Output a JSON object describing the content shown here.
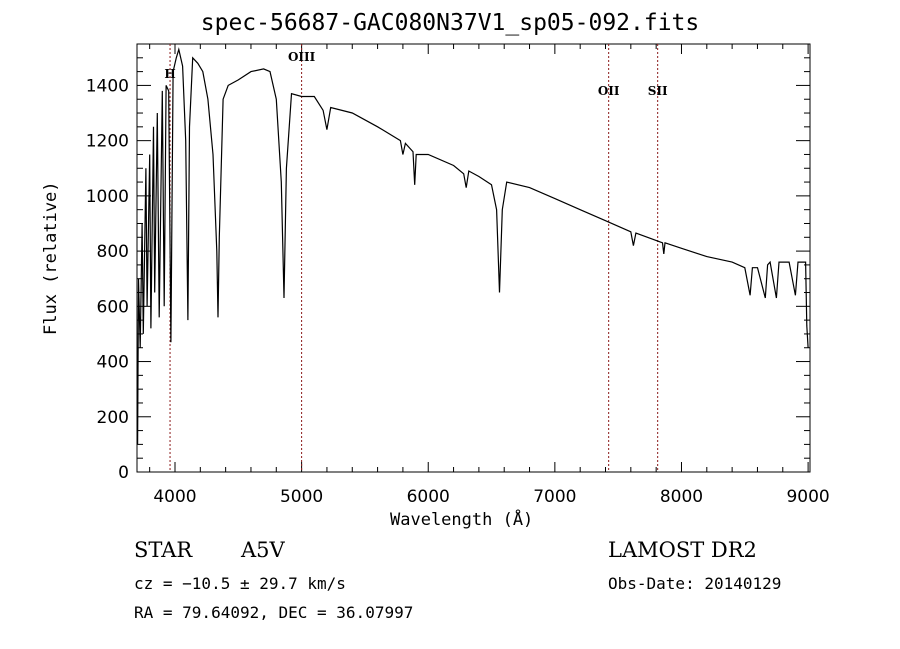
{
  "chart_data": {
    "type": "line",
    "title": "spec-56687-GAC080N37V1_sp05-092.fits",
    "xlabel": "Wavelength (Å)",
    "ylabel": "Flux (relative)",
    "xlim": [
      3700,
      9015
    ],
    "ylim": [
      0,
      1550
    ],
    "xticks": [
      4000,
      5000,
      6000,
      7000,
      8000,
      9000
    ],
    "yticks": [
      0,
      200,
      400,
      600,
      800,
      1000,
      1200,
      1400
    ],
    "grid": false,
    "line_markers": [
      {
        "label": "H",
        "x": 3961
      },
      {
        "label": "OIII",
        "x": 5000
      },
      {
        "label": "OII",
        "x": 7425
      },
      {
        "label": "SII",
        "x": 7812
      }
    ],
    "series": [
      {
        "name": "spectrum",
        "color": "#000000",
        "points": [
          [
            3705,
            100
          ],
          [
            3712,
            700
          ],
          [
            3725,
            450
          ],
          [
            3740,
            900
          ],
          [
            3750,
            500
          ],
          [
            3770,
            1100
          ],
          [
            3780,
            600
          ],
          [
            3800,
            1150
          ],
          [
            3810,
            520
          ],
          [
            3830,
            1250
          ],
          [
            3840,
            650
          ],
          [
            3860,
            1300
          ],
          [
            3875,
            560
          ],
          [
            3900,
            1380
          ],
          [
            3915,
            600
          ],
          [
            3930,
            1400
          ],
          [
            3950,
            1380
          ],
          [
            3968,
            470
          ],
          [
            3985,
            1450
          ],
          [
            4010,
            1500
          ],
          [
            4030,
            1530
          ],
          [
            4060,
            1470
          ],
          [
            4085,
            1200
          ],
          [
            4102,
            550
          ],
          [
            4115,
            1250
          ],
          [
            4140,
            1500
          ],
          [
            4180,
            1480
          ],
          [
            4220,
            1450
          ],
          [
            4260,
            1350
          ],
          [
            4300,
            1150
          ],
          [
            4330,
            800
          ],
          [
            4340,
            560
          ],
          [
            4350,
            850
          ],
          [
            4380,
            1350
          ],
          [
            4420,
            1400
          ],
          [
            4500,
            1420
          ],
          [
            4600,
            1450
          ],
          [
            4700,
            1460
          ],
          [
            4750,
            1450
          ],
          [
            4800,
            1350
          ],
          [
            4840,
            1050
          ],
          [
            4861,
            630
          ],
          [
            4880,
            1100
          ],
          [
            4920,
            1370
          ],
          [
            5000,
            1360
          ],
          [
            5100,
            1360
          ],
          [
            5170,
            1310
          ],
          [
            5200,
            1240
          ],
          [
            5230,
            1320
          ],
          [
            5400,
            1300
          ],
          [
            5600,
            1250
          ],
          [
            5780,
            1200
          ],
          [
            5800,
            1150
          ],
          [
            5820,
            1190
          ],
          [
            5880,
            1160
          ],
          [
            5893,
            1040
          ],
          [
            5905,
            1150
          ],
          [
            6000,
            1150
          ],
          [
            6200,
            1110
          ],
          [
            6280,
            1080
          ],
          [
            6300,
            1030
          ],
          [
            6320,
            1090
          ],
          [
            6400,
            1070
          ],
          [
            6500,
            1040
          ],
          [
            6540,
            950
          ],
          [
            6563,
            650
          ],
          [
            6585,
            950
          ],
          [
            6620,
            1050
          ],
          [
            6800,
            1030
          ],
          [
            7000,
            990
          ],
          [
            7200,
            950
          ],
          [
            7400,
            910
          ],
          [
            7600,
            870
          ],
          [
            7620,
            820
          ],
          [
            7640,
            865
          ],
          [
            7850,
            830
          ],
          [
            7860,
            790
          ],
          [
            7870,
            830
          ],
          [
            8000,
            810
          ],
          [
            8200,
            780
          ],
          [
            8400,
            760
          ],
          [
            8500,
            740
          ],
          [
            8542,
            640
          ],
          [
            8560,
            740
          ],
          [
            8600,
            740
          ],
          [
            8662,
            630
          ],
          [
            8680,
            750
          ],
          [
            8700,
            760
          ],
          [
            8750,
            630
          ],
          [
            8770,
            760
          ],
          [
            8850,
            760
          ],
          [
            8900,
            640
          ],
          [
            8920,
            760
          ],
          [
            8980,
            760
          ],
          [
            8990,
            530
          ],
          [
            9000,
            450
          ]
        ]
      }
    ]
  },
  "info": {
    "object_class": "STAR",
    "subclass": "A5V",
    "cz": "cz = −10.5 ± 29.7 km/s",
    "coords": "RA =  79.64092, DEC =  36.07997",
    "survey": "LAMOST DR2",
    "obs_date": "Obs-Date: 20140129"
  }
}
